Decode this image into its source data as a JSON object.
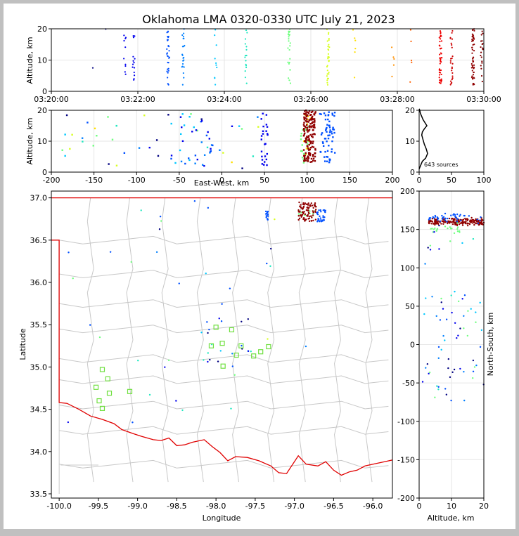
{
  "chart_data": [
    {
      "type": "scatter",
      "panel": "altitude-vs-time",
      "title": "Oklahoma LMA 0320-0330 UTC July 21, 2023",
      "ylabel": "Altitude, km",
      "xlim": [
        "03:20:00",
        "03:30:00"
      ],
      "ylim": [
        0,
        20
      ],
      "xticks": [
        "03:20:00",
        "03:22:00",
        "03:24:00",
        "03:26:00",
        "03:28:00",
        "03:30:00"
      ],
      "yticks": [
        "0",
        "10",
        "20"
      ],
      "grid": true,
      "color_by": "time",
      "columns": [
        {
          "t_min": 0.95,
          "color": "#000080",
          "n": 1
        },
        {
          "t_min": 1.25,
          "color": "#000080",
          "n": 1
        },
        {
          "t_min": 1.7,
          "color": "#0000ee",
          "n": 10
        },
        {
          "t_min": 1.9,
          "color": "#0000ee",
          "n": 14
        },
        {
          "t_min": 2.7,
          "color": "#0050ff",
          "n": 30
        },
        {
          "t_min": 3.05,
          "color": "#0080ff",
          "n": 22
        },
        {
          "t_min": 3.8,
          "color": "#00c8ff",
          "n": 10
        },
        {
          "t_min": 4.5,
          "color": "#20e8c0",
          "n": 16
        },
        {
          "t_min": 5.5,
          "color": "#70ff80",
          "n": 24
        },
        {
          "t_min": 6.4,
          "color": "#d8ff20",
          "n": 30
        },
        {
          "t_min": 7.0,
          "color": "#ffe000",
          "n": 6
        },
        {
          "t_min": 7.9,
          "color": "#ff9000",
          "n": 5
        },
        {
          "t_min": 8.3,
          "color": "#ff6000",
          "n": 5
        },
        {
          "t_min": 9.0,
          "color": "#ee0000",
          "n": 45
        },
        {
          "t_min": 9.25,
          "color": "#cc0000",
          "n": 25
        },
        {
          "t_min": 9.75,
          "color": "#900000",
          "n": 55
        },
        {
          "t_min": 9.95,
          "color": "#800000",
          "n": 20
        }
      ]
    },
    {
      "type": "scatter",
      "panel": "altitude-vs-east-west",
      "xlabel": "East-West, km",
      "ylabel": "Altitude, km",
      "xlim": [
        -200,
        200
      ],
      "ylim": [
        0,
        20
      ],
      "xticks": [
        "-200",
        "-150",
        "-100",
        "-50",
        "0",
        "50",
        "100",
        "150",
        "200"
      ],
      "yticks": [
        "0",
        "10",
        "20"
      ],
      "grid": true
    },
    {
      "type": "line",
      "panel": "altitude-histogram",
      "xlim": [
        0,
        100
      ],
      "ylim": [
        0,
        20
      ],
      "xticks": [
        "0",
        "50",
        "100"
      ],
      "yticks": [
        "0",
        "10",
        "20"
      ],
      "annotation": "643 sources",
      "x": [
        0,
        2,
        5,
        10,
        13,
        11,
        8,
        6,
        4,
        5,
        8,
        12,
        9,
        6,
        4,
        2,
        1,
        0
      ],
      "y": [
        1,
        2,
        3.5,
        4.5,
        6,
        7.5,
        9,
        10.5,
        12,
        13,
        14,
        15,
        16,
        17,
        18,
        19,
        20,
        20.5
      ]
    },
    {
      "type": "scatter",
      "panel": "plan-view-map",
      "xlabel": "Longitude",
      "ylabel": "Latitude",
      "xlim": [
        -100.1,
        -95.75
      ],
      "ylim": [
        33.45,
        37.08
      ],
      "xticks": [
        "-100.0",
        "-99.5",
        "-99.0",
        "-98.5",
        "-98.0",
        "-97.5",
        "-97.0",
        "-96.5",
        "-96.0"
      ],
      "yticks": [
        "33.5",
        "34.0",
        "34.5",
        "35.0",
        "35.5",
        "36.0",
        "36.5",
        "37.0"
      ],
      "stations": [
        {
          "lon": -99.45,
          "lat": 34.97
        },
        {
          "lon": -99.38,
          "lat": 34.86
        },
        {
          "lon": -99.53,
          "lat": 34.76
        },
        {
          "lon": -99.36,
          "lat": 34.69
        },
        {
          "lon": -99.49,
          "lat": 34.6
        },
        {
          "lon": -99.45,
          "lat": 34.51
        },
        {
          "lon": -99.1,
          "lat": 34.71
        },
        {
          "lon": -98.0,
          "lat": 35.47
        },
        {
          "lon": -97.8,
          "lat": 35.44
        },
        {
          "lon": -97.92,
          "lat": 35.28
        },
        {
          "lon": -98.06,
          "lat": 35.25
        },
        {
          "lon": -97.68,
          "lat": 35.25
        },
        {
          "lon": -97.33,
          "lat": 35.24
        },
        {
          "lon": -97.43,
          "lat": 35.18
        },
        {
          "lon": -97.52,
          "lat": 35.13
        },
        {
          "lon": -97.74,
          "lat": 35.14
        },
        {
          "lon": -97.91,
          "lat": 35.01
        }
      ]
    },
    {
      "type": "scatter",
      "panel": "north-south-vs-altitude",
      "xlabel": "Altitude, km",
      "ylabel": "North-South, km",
      "xlim": [
        0,
        20
      ],
      "ylim": [
        -200,
        200
      ],
      "xticks": [
        "0",
        "10",
        "20"
      ],
      "yticks": [
        "-200",
        "-150",
        "-100",
        "-50",
        "0",
        "50",
        "100",
        "150",
        "200"
      ],
      "grid": true
    }
  ]
}
